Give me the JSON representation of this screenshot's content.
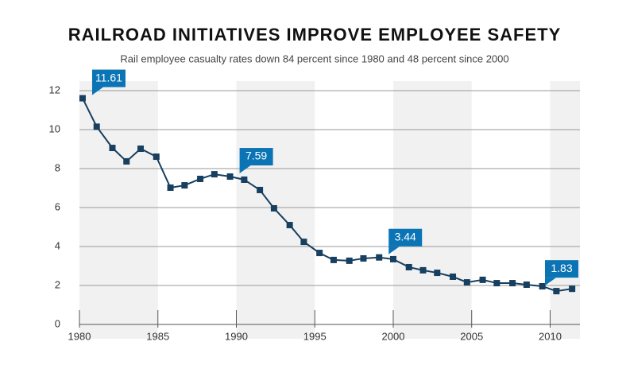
{
  "chart_data": {
    "type": "line",
    "title": "RAILROAD INITIATIVES IMPROVE EMPLOYEE SAFETY",
    "subtitle": "Rail employee casualty rates down 84 percent since 1980 and 48 percent since 2000",
    "x": [
      1980.2,
      1981.1,
      1982.1,
      1983.0,
      1983.9,
      1984.9,
      1985.8,
      1986.7,
      1987.7,
      1988.6,
      1989.6,
      1990.5,
      1991.5,
      1992.4,
      1993.4,
      1994.3,
      1995.3,
      1996.2,
      1997.2,
      1998.1,
      1999.1,
      2000.0,
      2001.0,
      2001.9,
      2002.8,
      2003.8,
      2004.7,
      2005.7,
      2006.6,
      2007.6,
      2008.5,
      2009.5,
      2010.4,
      2011.4
    ],
    "series": [
      {
        "color": "#173f5f",
        "values": [
          11.61,
          10.15,
          9.06,
          8.37,
          9.02,
          8.61,
          7.02,
          7.14,
          7.47,
          7.71,
          7.59,
          7.43,
          6.9,
          5.96,
          5.1,
          4.24,
          3.67,
          3.31,
          3.27,
          3.39,
          3.44,
          3.35,
          2.94,
          2.78,
          2.65,
          2.45,
          2.16,
          2.29,
          2.12,
          2.12,
          2.04,
          1.96,
          1.71,
          1.83
        ],
        "value_labels": [
          "11.61",
          null,
          null,
          null,
          null,
          null,
          null,
          null,
          null,
          null,
          "7.59",
          null,
          null,
          null,
          null,
          null,
          null,
          null,
          null,
          null,
          "3.44",
          null,
          null,
          null,
          null,
          null,
          null,
          null,
          null,
          null,
          null,
          null,
          null,
          "1.83"
        ],
        "label_color": "#0b74b5"
      }
    ],
    "xlim": [
      1980,
      2011.9
    ],
    "xticks": [
      1980,
      1985,
      1990,
      1995,
      2000,
      2005,
      2010
    ],
    "ylim": [
      0,
      12
    ],
    "yticks": [
      0,
      2,
      4,
      6,
      8,
      10,
      12
    ],
    "grid": true
  }
}
